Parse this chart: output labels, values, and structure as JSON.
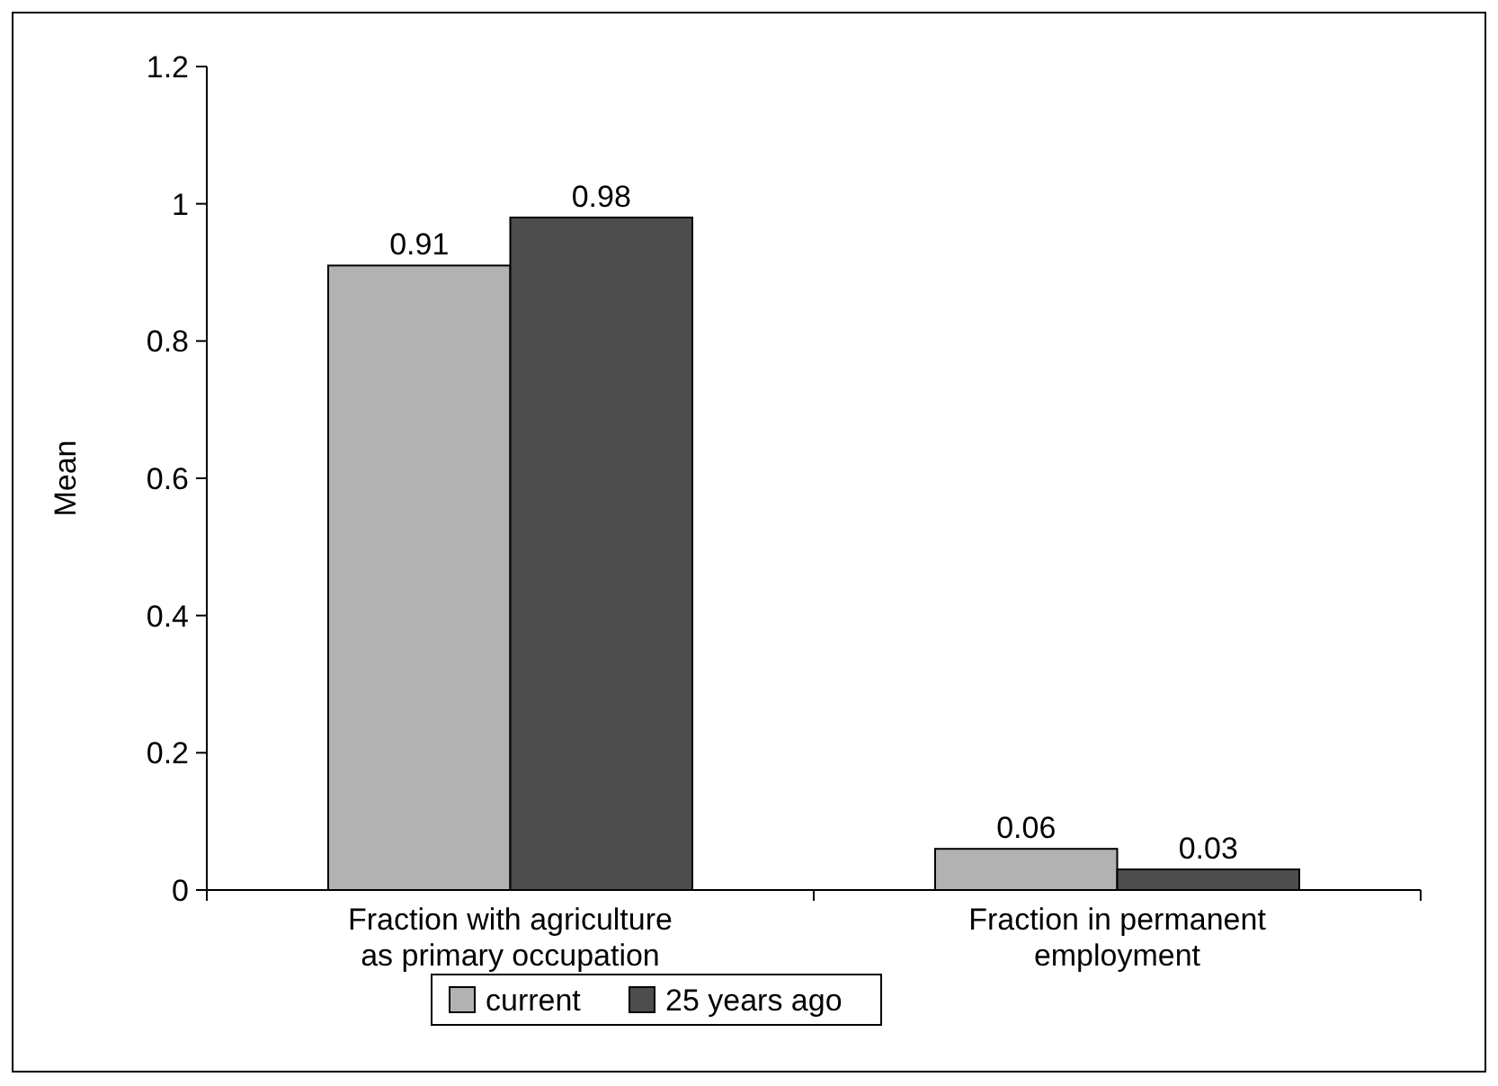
{
  "chart_data": {
    "type": "bar",
    "ylabel": "Mean",
    "categories": [
      "Fraction with agriculture as primary occupation",
      "Fraction in permanent employment"
    ],
    "series": [
      {
        "name": "current",
        "color": "#b2b2b2",
        "values": [
          0.91,
          0.06
        ]
      },
      {
        "name": "25 years ago",
        "color": "#4d4d4d",
        "values": [
          0.98,
          0.03
        ]
      }
    ],
    "ylim": [
      0,
      1.2
    ],
    "yticks": [
      0,
      0.2,
      0.4,
      0.6,
      0.8,
      1,
      1.2
    ],
    "data_labels": true,
    "legend": "bottom",
    "grid": false
  }
}
